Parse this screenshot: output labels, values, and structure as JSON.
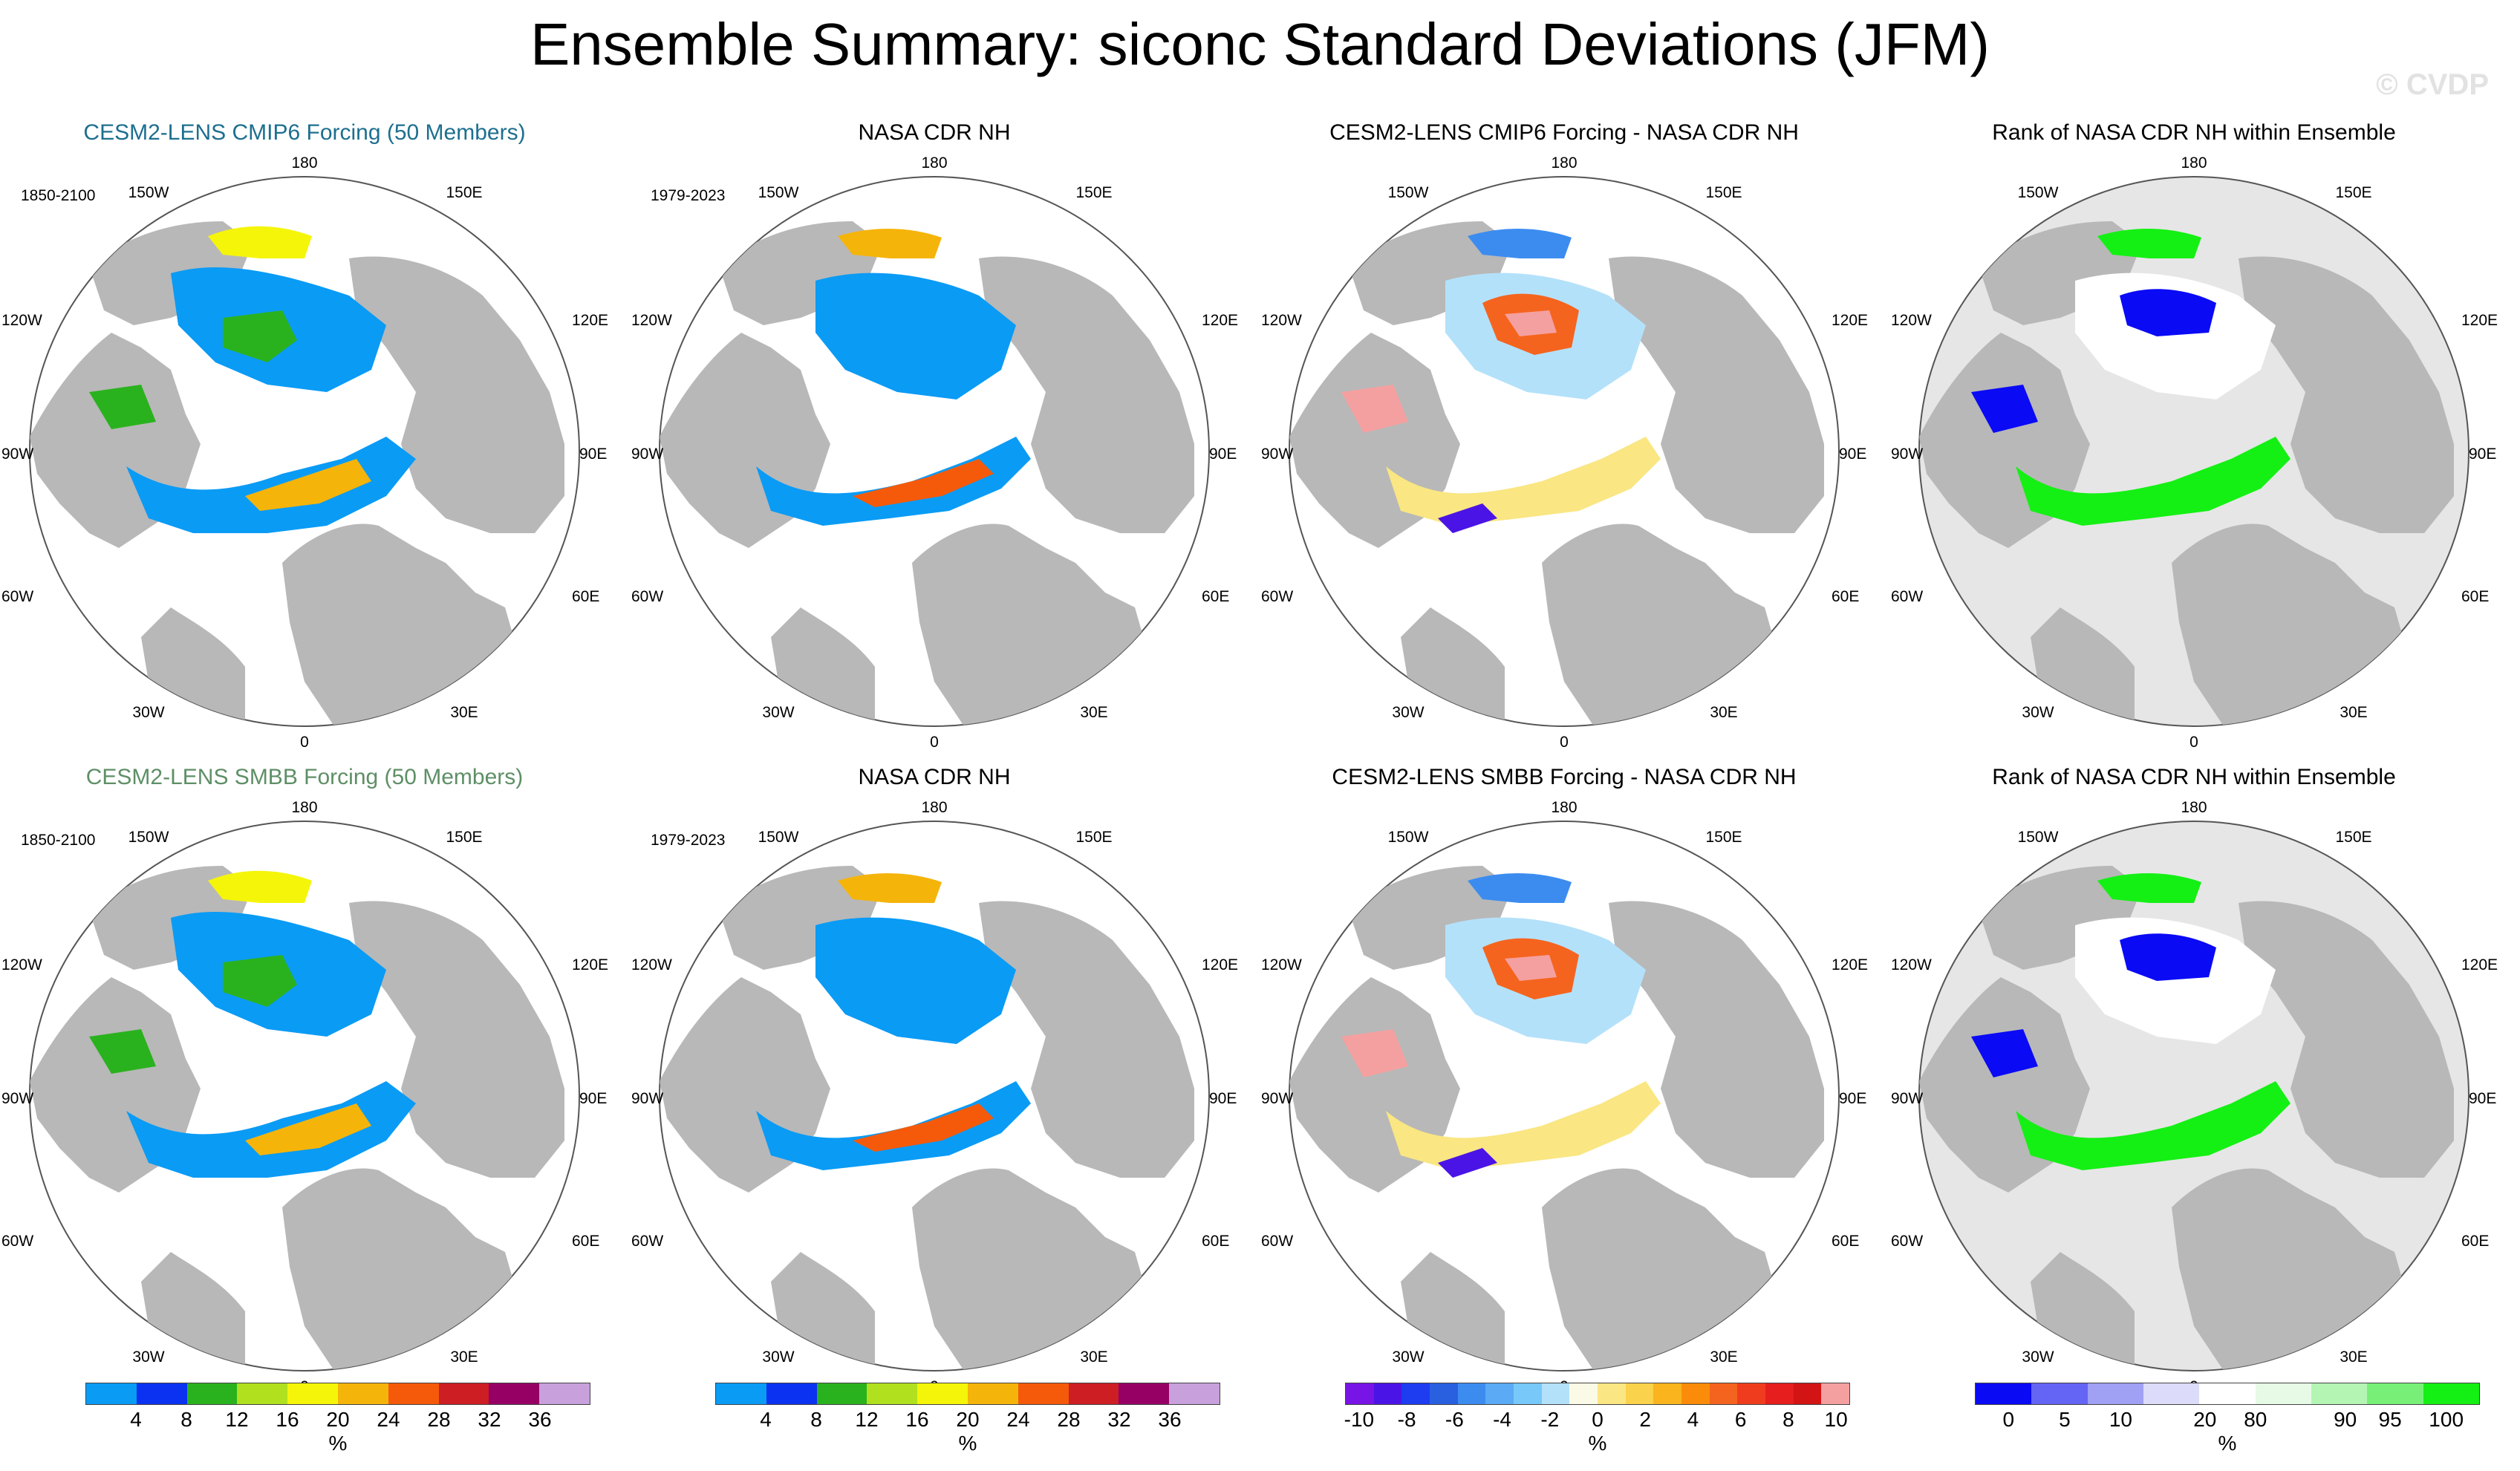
{
  "title": "Ensemble Summary: siconc Standard Deviations (JFM)",
  "watermark": "© CVDP",
  "longitude_labels": {
    "top": "180",
    "left_upper": "150W",
    "right_upper": "150E",
    "left_mid_upper": "120W",
    "right_mid_upper": "120E",
    "left": "90W",
    "right": "90E",
    "left_mid_lower": "60W",
    "right_mid_lower": "60E",
    "left_lower": "30W",
    "right_lower": "30E",
    "bottom": "0"
  },
  "rows": [
    {
      "panels": [
        {
          "title": "CESM2-LENS CMIP6 Forcing (50 Members)",
          "period": "1850-2100"
        },
        {
          "title": "NASA CDR NH",
          "period": "1979-2023"
        },
        {
          "title": "CESM2-LENS CMIP6 Forcing - NASA CDR NH",
          "period": ""
        },
        {
          "title": "Rank of NASA CDR NH within Ensemble",
          "period": ""
        }
      ]
    },
    {
      "panels": [
        {
          "title": "CESM2-LENS SMBB Forcing (50 Members)",
          "period": "1850-2100"
        },
        {
          "title": "NASA CDR NH",
          "period": "1979-2023"
        },
        {
          "title": "CESM2-LENS SMBB Forcing - NASA CDR NH",
          "period": ""
        },
        {
          "title": "Rank of NASA CDR NH within Ensemble",
          "period": ""
        }
      ]
    }
  ],
  "colorbars": [
    {
      "unit": "%",
      "ticks": [
        "4",
        "8",
        "12",
        "16",
        "20",
        "24",
        "28",
        "32",
        "36"
      ],
      "colors": [
        "#0a9bf5",
        "#0a32f0",
        "#2ab21e",
        "#b0e01e",
        "#f5f50a",
        "#f5b40a",
        "#f55a0a",
        "#cd1e23",
        "#960064",
        "#c8a0dc"
      ]
    },
    {
      "unit": "%",
      "ticks": [
        "4",
        "8",
        "12",
        "16",
        "20",
        "24",
        "28",
        "32",
        "36"
      ],
      "colors": [
        "#0a9bf5",
        "#0a32f0",
        "#2ab21e",
        "#b0e01e",
        "#f5f50a",
        "#f5b40a",
        "#f55a0a",
        "#cd1e23",
        "#960064",
        "#c8a0dc"
      ]
    },
    {
      "unit": "%",
      "ticks": [
        "-10",
        "-8",
        "-6",
        "-4",
        "-2",
        "0",
        "2",
        "4",
        "6",
        "8",
        "10"
      ],
      "colors": [
        "#7814e6",
        "#4b14e6",
        "#1e3cf0",
        "#2860e0",
        "#3c8cf0",
        "#5aaaf5",
        "#78c8fa",
        "#b4e1fa",
        "#fafae6",
        "#fae682",
        "#fad24b",
        "#fab41e",
        "#fa8c0a",
        "#f5641e",
        "#f03c1e",
        "#e61e1e",
        "#d21414",
        "#f5a0a0"
      ]
    },
    {
      "unit": "%",
      "ticks": [
        "0",
        "5",
        "10",
        "20",
        "80",
        "90",
        "95",
        "100"
      ],
      "colors": [
        "#0a0af5",
        "#6464f5",
        "#a0a0f5",
        "#dcdcfa",
        "#ffffff",
        "#e6fae6",
        "#b4f5b4",
        "#78f078",
        "#14f014"
      ]
    }
  ]
}
